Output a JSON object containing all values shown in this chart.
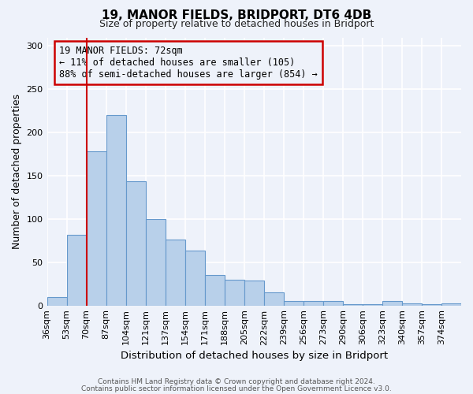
{
  "title": "19, MANOR FIELDS, BRIDPORT, DT6 4DB",
  "subtitle": "Size of property relative to detached houses in Bridport",
  "xlabel": "Distribution of detached houses by size in Bridport",
  "ylabel": "Number of detached properties",
  "categories": [
    "36sqm",
    "53sqm",
    "70sqm",
    "87sqm",
    "104sqm",
    "121sqm",
    "137sqm",
    "154sqm",
    "171sqm",
    "188sqm",
    "205sqm",
    "222sqm",
    "239sqm",
    "256sqm",
    "273sqm",
    "290sqm",
    "306sqm",
    "323sqm",
    "340sqm",
    "357sqm",
    "374sqm"
  ],
  "values": [
    10,
    82,
    178,
    220,
    144,
    100,
    76,
    63,
    35,
    30,
    29,
    15,
    5,
    5,
    5,
    1,
    1,
    5,
    2,
    1,
    2
  ],
  "bar_color": "#b8d0ea",
  "bar_edge_color": "#6699cc",
  "background_color": "#eef2fa",
  "grid_color": "#ffffff",
  "vline_x_idx": 2,
  "vline_color": "#cc0000",
  "box_text_line1": "19 MANOR FIELDS: 72sqm",
  "box_text_line2": "← 11% of detached houses are smaller (105)",
  "box_text_line3": "88% of semi-detached houses are larger (854) →",
  "box_color": "#cc0000",
  "ylim": [
    0,
    310
  ],
  "yticks": [
    0,
    50,
    100,
    150,
    200,
    250,
    300
  ],
  "footer_line1": "Contains HM Land Registry data © Crown copyright and database right 2024.",
  "footer_line2": "Contains public sector information licensed under the Open Government Licence v3.0."
}
